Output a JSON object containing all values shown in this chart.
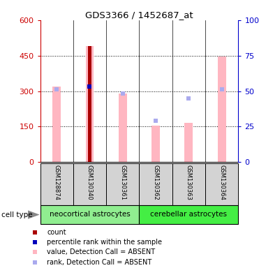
{
  "title": "GDS3366 / 1452687_at",
  "samples": [
    "GSM128874",
    "GSM130340",
    "GSM130361",
    "GSM130362",
    "GSM130363",
    "GSM130364"
  ],
  "cell_types": [
    {
      "label": "neocortical astrocytes",
      "color": "#90EE90",
      "span": [
        0,
        3
      ]
    },
    {
      "label": "cerebellar astrocytes",
      "color": "#44EE44",
      "span": [
        3,
        6
      ]
    }
  ],
  "values_absent": [
    320,
    490,
    290,
    155,
    165,
    445
  ],
  "ranks_absent": [
    308,
    320,
    290,
    175,
    270,
    308
  ],
  "count_idx": 1,
  "count_val": 490,
  "percentile_idx": 1,
  "percentile_val": 320,
  "ylim_left": [
    0,
    600
  ],
  "ylim_right": [
    0,
    100
  ],
  "yticks_left": [
    0,
    150,
    300,
    450,
    600
  ],
  "yticks_right": [
    0,
    25,
    50,
    75,
    100
  ],
  "ytick_right_labels": [
    "0",
    "25",
    "50",
    "75",
    "100%"
  ],
  "value_color": "#FFB6C1",
  "rank_color": "#AAAAEE",
  "count_color": "#AA0000",
  "percentile_color": "#0000BB",
  "left_axis_color": "#CC0000",
  "right_axis_color": "#0000CC",
  "sample_bg": "#D3D3D3",
  "legend_items": [
    {
      "color": "#AA0000",
      "marker": "s",
      "label": "count"
    },
    {
      "color": "#0000BB",
      "marker": "s",
      "label": "percentile rank within the sample"
    },
    {
      "color": "#FFB6C1",
      "marker": "s",
      "label": "value, Detection Call = ABSENT"
    },
    {
      "color": "#AAAAEE",
      "marker": "s",
      "label": "rank, Detection Call = ABSENT"
    }
  ]
}
